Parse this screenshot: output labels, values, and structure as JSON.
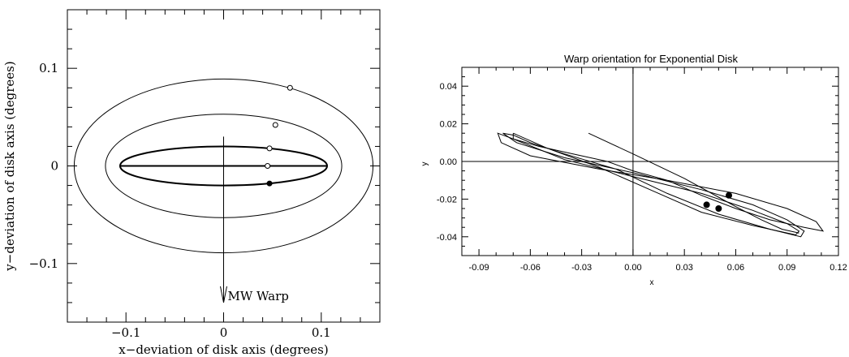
{
  "chart_data": [
    {
      "type": "line",
      "title": "",
      "xlabel": "x−deviation of disk axis (degrees)",
      "ylabel": "y−deviation of disk axis (degrees)",
      "xlim": [
        -0.16,
        0.16
      ],
      "ylim": [
        -0.16,
        0.16
      ],
      "xticks": [
        -0.1,
        0,
        0.1
      ],
      "xtick_labels": [
        "−0.1",
        "0",
        "0.1"
      ],
      "yticks": [
        -0.1,
        0,
        0.1
      ],
      "ytick_labels": [
        "−0.1",
        "0",
        "0.1"
      ],
      "grid": false,
      "ellipses": [
        {
          "cx": 0,
          "cy": 0,
          "rx": 0.153,
          "ry": 0.089,
          "bold": false
        },
        {
          "cx": 0,
          "cy": 0,
          "rx": 0.121,
          "ry": 0.053,
          "bold": false
        },
        {
          "cx": 0,
          "cy": 0,
          "rx": 0.106,
          "ry": 0.02,
          "bold": true
        }
      ],
      "lines": [
        {
          "x": [
            -0.106,
            0.106
          ],
          "y": [
            0,
            0
          ],
          "bold": true
        }
      ],
      "markers": [
        {
          "x": 0.068,
          "y": 0.08,
          "filled": false
        },
        {
          "x": 0.053,
          "y": 0.042,
          "filled": false
        },
        {
          "x": 0.047,
          "y": 0.018,
          "filled": false
        },
        {
          "x": 0.045,
          "y": 0.0,
          "filled": false
        },
        {
          "x": 0.047,
          "y": -0.018,
          "filled": true
        }
      ],
      "arrow": {
        "x": 0,
        "y_start": 0.03,
        "y_end": -0.14,
        "label": "MW Warp"
      }
    },
    {
      "type": "line",
      "title": "Warp orientation for Exponential Disk",
      "xlabel": "x",
      "ylabel": "y",
      "xlim": [
        -0.1,
        0.12
      ],
      "ylim": [
        -0.05,
        0.05
      ],
      "xticks": [
        -0.09,
        -0.06,
        -0.03,
        0.0,
        0.03,
        0.06,
        0.09,
        0.12
      ],
      "xtick_labels": [
        "-0.09",
        "-0.06",
        "-0.03",
        "0.00",
        "0.03",
        "0.06",
        "0.09",
        "0.12"
      ],
      "yticks": [
        -0.04,
        -0.02,
        0.0,
        0.02,
        0.04
      ],
      "ytick_labels": [
        "-0.04",
        "-0.02",
        "0.00",
        "0.02",
        "0.04"
      ],
      "grid": false,
      "zero_lines": true,
      "series": [
        {
          "x": [
            -0.026,
            0.0,
            0.03,
            0.06,
            0.075,
            0.087,
            0.097
          ],
          "y": [
            0.015,
            0.004,
            -0.009,
            -0.024,
            -0.031,
            -0.036,
            -0.038
          ]
        },
        {
          "x": [
            -0.015,
            -0.035,
            -0.055,
            -0.07,
            -0.079,
            -0.077,
            -0.06,
            -0.02,
            0.02,
            0.06,
            0.09,
            0.107,
            0.111,
            0.1,
            0.08,
            0.06,
            0.04,
            0.02,
            0.0,
            -0.015
          ],
          "y": [
            0.0,
            0.004,
            0.008,
            0.012,
            0.015,
            0.01,
            0.003,
            -0.004,
            -0.01,
            -0.017,
            -0.025,
            -0.032,
            -0.037,
            -0.035,
            -0.031,
            -0.025,
            -0.018,
            -0.01,
            -0.005,
            0.0
          ]
        },
        {
          "x": [
            -0.07,
            -0.076,
            -0.068,
            -0.04,
            0.0,
            0.04,
            0.07,
            0.09,
            0.1,
            0.098,
            0.08,
            0.05,
            0.02,
            -0.01,
            -0.04,
            -0.06,
            -0.07
          ],
          "y": [
            0.014,
            0.015,
            0.01,
            0.002,
            -0.006,
            -0.015,
            -0.023,
            -0.031,
            -0.037,
            -0.04,
            -0.036,
            -0.028,
            -0.017,
            -0.004,
            0.004,
            0.01,
            0.014
          ]
        },
        {
          "x": [
            -0.07,
            -0.07,
            -0.04,
            0.0,
            0.04,
            0.07,
            0.09,
            0.097,
            0.095,
            0.07,
            0.04,
            0.01,
            -0.02,
            -0.05,
            -0.07
          ],
          "y": [
            0.015,
            0.012,
            0.001,
            -0.008,
            -0.017,
            -0.026,
            -0.033,
            -0.037,
            -0.039,
            -0.034,
            -0.027,
            -0.015,
            -0.003,
            0.007,
            0.015
          ]
        }
      ],
      "markers": [
        {
          "x": 0.056,
          "y": -0.018,
          "filled": true
        },
        {
          "x": 0.043,
          "y": -0.023,
          "filled": true
        },
        {
          "x": 0.05,
          "y": -0.025,
          "filled": true
        }
      ]
    }
  ]
}
